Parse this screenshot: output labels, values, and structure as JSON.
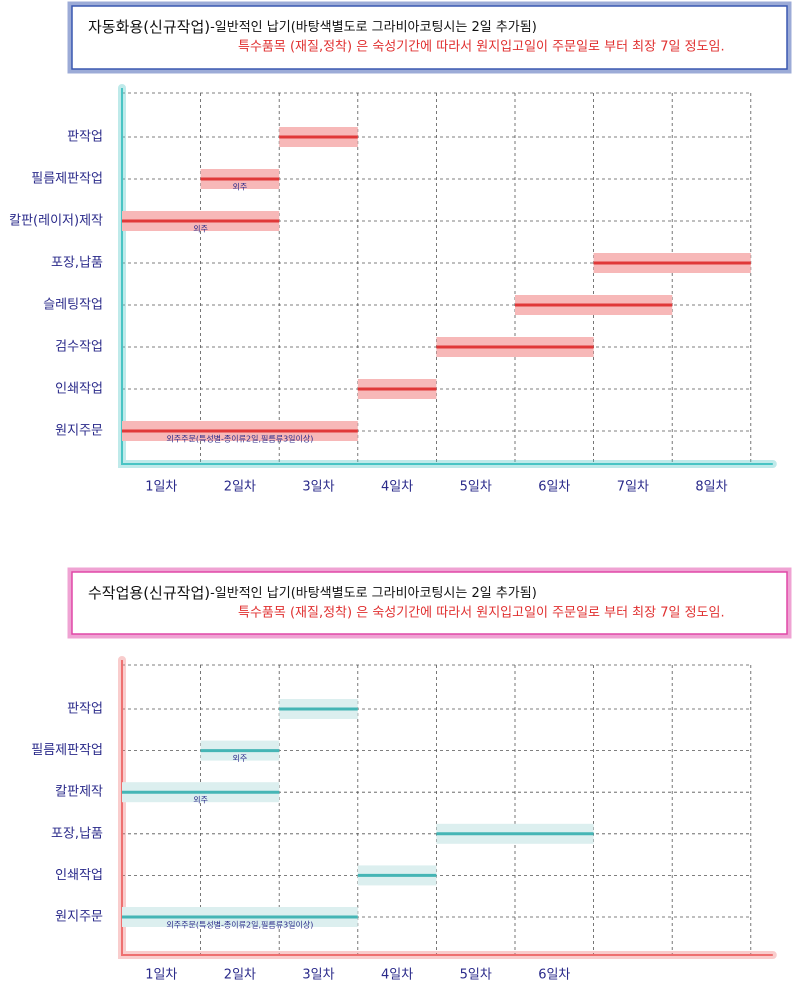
{
  "chart_data": [
    {
      "type": "gantt",
      "title": "자동화용(신규작업)",
      "title_note": "-일반적인 납기(바탕색별도로 그라비아코팅시는 2일 추가됨)",
      "subtitle": "특수품목 (재질,정착) 은 숙성기간에 따라서 원지입고일이 주문일로 부터 최장 7일 정도임.",
      "x_categories": [
        "1일차",
        "2일차",
        "3일차",
        "4일차",
        "5일차",
        "6일차",
        "7일차",
        "8일차"
      ],
      "tasks": [
        {
          "name": "판작업",
          "start": 2,
          "end": 3
        },
        {
          "name": "필름제판작업",
          "start": 1,
          "end": 2,
          "note": "외주"
        },
        {
          "name": "칼판(레이저)제작",
          "start": 0,
          "end": 2,
          "note": "외주"
        },
        {
          "name": "포장,납품",
          "start": 6,
          "end": 8
        },
        {
          "name": "슬레팅작업",
          "start": 5,
          "end": 7
        },
        {
          "name": "검수작업",
          "start": 4,
          "end": 6
        },
        {
          "name": "인쇄작업",
          "start": 3,
          "end": 4
        },
        {
          "name": "원지주문",
          "start": 0,
          "end": 3,
          "note": "외주주문(특성별-종이류2일,필름류3일이상)"
        }
      ],
      "color": "#e03838",
      "band_color": "#f7b8b8",
      "axis_color": "#49c4c4",
      "frame_color": "#3a58b0",
      "grid": true
    },
    {
      "type": "gantt",
      "title": "수작업용(신규작업)",
      "title_note": "-일반적인 납기(바탕색별도로 그라비아코팅시는 2일 추가됨)",
      "subtitle": "특수품목 (재질,정착) 은 숙성기간에 따라서 원지입고일이 주문일로 부터 최장 7일 정도임.",
      "x_categories": [
        "1일차",
        "2일차",
        "3일차",
        "4일차",
        "5일차",
        "6일차",
        null,
        null
      ],
      "tasks": [
        {
          "name": "판작업",
          "start": 2,
          "end": 3
        },
        {
          "name": "필름제판작업",
          "start": 1,
          "end": 2,
          "note": "외주"
        },
        {
          "name": "칼판제작",
          "start": 0,
          "end": 2,
          "note": "외주"
        },
        {
          "name": "포장,납품",
          "start": 4,
          "end": 6
        },
        {
          "name": "인쇄작업",
          "start": 3,
          "end": 4
        },
        {
          "name": "원지주문",
          "start": 0,
          "end": 3,
          "note": "외주주문(특성별-종이류2일,필름류3일이상)"
        }
      ],
      "color": "#45b5b5",
      "band_color": "#dcefef",
      "axis_color": "#ee7070",
      "frame_color": "#e048a8",
      "grid": true
    }
  ]
}
